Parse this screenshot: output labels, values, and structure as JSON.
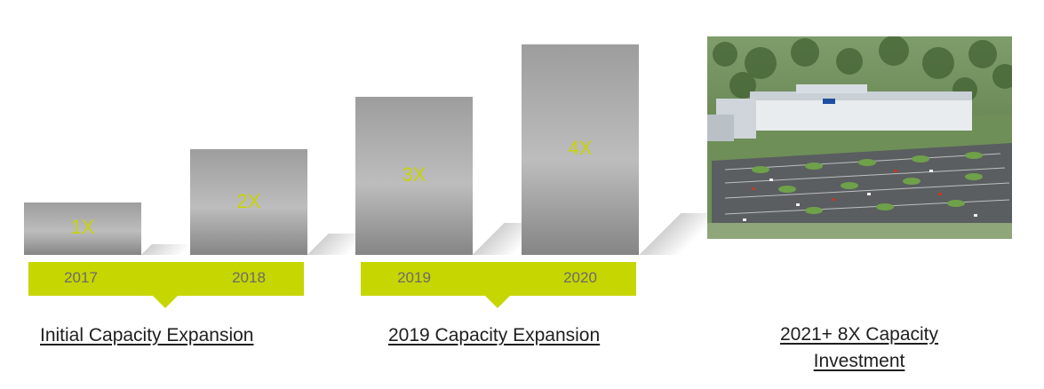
{
  "chart_data": {
    "type": "bar",
    "categories": [
      "2017",
      "2018",
      "2019",
      "2020"
    ],
    "values": [
      1,
      2,
      3,
      4
    ],
    "data_labels": [
      "1X",
      "2X",
      "3X",
      "4X"
    ],
    "ylim": [
      0,
      4.4
    ],
    "groups": [
      {
        "label": "Initial Capacity Expansion",
        "categories": [
          "2017",
          "2018"
        ]
      },
      {
        "label": "2019 Capacity Expansion",
        "categories": [
          "2019",
          "2020"
        ]
      }
    ],
    "bar_color": "#a9a9aa",
    "label_color": "#c7d400",
    "band_color": "#c6d600"
  },
  "investment": {
    "line1": "2021+  8X Capacity",
    "line2": "Investment",
    "image": "factory-aerial-rendering"
  }
}
